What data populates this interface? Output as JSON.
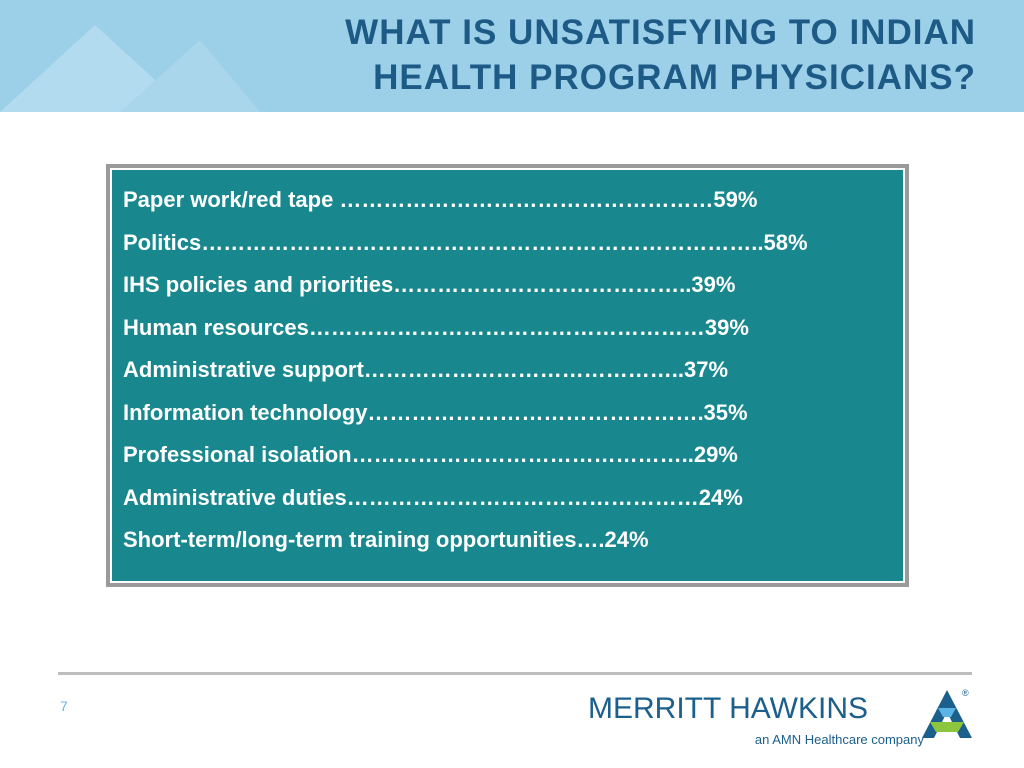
{
  "header": {
    "title_lines": [
      "WHAT IS UNSATISFYING TO INDIAN",
      "HEALTH PROGRAM PHYSICIANS?"
    ]
  },
  "list": {
    "items": [
      "Paper work/red tape ……………………………………………59%",
      "Politics…………………………………………………………………..58%",
      "IHS policies and priorities…………………………………..39%",
      "Human resources………………………………………………39%",
      "Administrative support……………………………………..37%",
      "Information technology……………………………………….35%",
      "Professional isolation………………………………………..29%",
      "Administrative duties…………………………………………24%",
      "Short-term/long-term training opportunities….24%"
    ]
  },
  "footer": {
    "page_number": "7",
    "logo_name": "MERRITT HAWKINS",
    "logo_mark": "®",
    "logo_tagline": "an AMN Healthcare company"
  }
}
